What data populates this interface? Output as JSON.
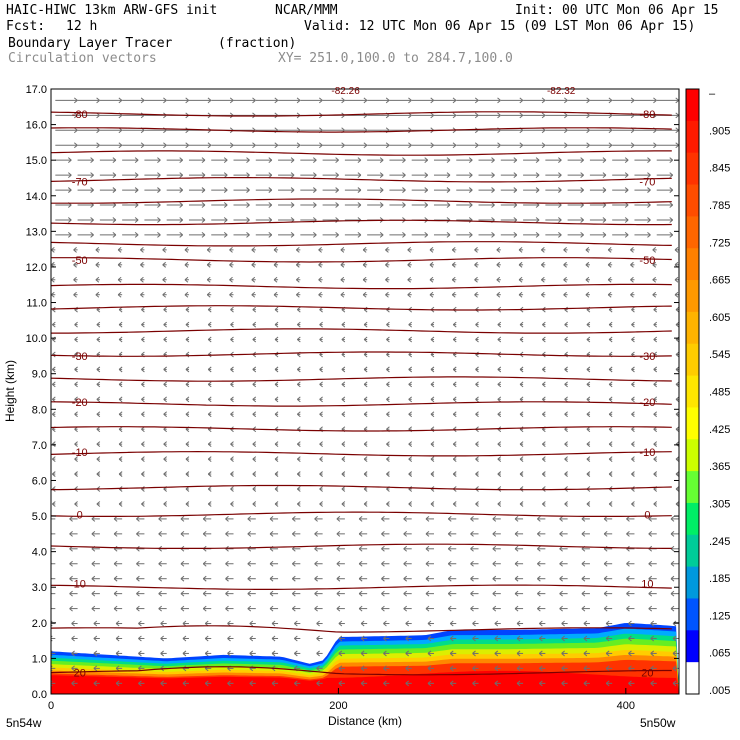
{
  "header": {
    "model": "HAIC-HIWC 13km ARW-GFS init",
    "org": "NCAR/MMM",
    "init": "Init: 00 UTC Mon 06 Apr 15",
    "fcst_label": "Fcst:",
    "fcst_value": "12 h",
    "valid": "Valid: 12 UTC Mon 06 Apr 15 (09 LST Mon 06 Apr 15)",
    "field": "Boundary Layer Tracer",
    "field_units": "(fraction)",
    "vectors": "Circulation vectors",
    "xy": "XY= 251.0,100.0 to 284.7,100.0"
  },
  "chart_data": {
    "type": "heatmap",
    "xlabel": "Distance (km)",
    "ylabel": "Height (km)",
    "xlim": [
      0,
      437
    ],
    "ylim": [
      0,
      17
    ],
    "xticks": [
      0,
      200,
      400
    ],
    "yticks": [
      "0.0",
      "1.0",
      "2.0",
      "3.0",
      "4.0",
      "5.0",
      "6.0",
      "7.0",
      "8.0",
      "9.0",
      "10.0",
      "11.0",
      "12.0",
      "13.0",
      "14.0",
      "15.0",
      "16.0",
      "17.0"
    ],
    "x_endpoint_labels": [
      "5n54w",
      "5n50w"
    ],
    "grid": false,
    "tracer_top_profile": {
      "x": [
        0,
        40,
        80,
        120,
        160,
        180,
        190,
        200,
        260,
        280,
        320,
        380,
        400,
        420,
        437
      ],
      "h": [
        1.2,
        1.1,
        1.0,
        1.1,
        1.05,
        0.85,
        0.95,
        1.6,
        1.65,
        1.8,
        1.8,
        1.85,
        2.0,
        1.95,
        1.9
      ]
    },
    "isotherm_labels": [
      {
        "value": "-80",
        "h": 16.3
      },
      {
        "value": "-70",
        "h": 14.4
      },
      {
        "value": "-50",
        "h": 12.2
      },
      {
        "value": "-30",
        "h": 9.5
      },
      {
        "value": "-20",
        "h": 8.2
      },
      {
        "value": "-10",
        "h": 6.8
      },
      {
        "value": "0",
        "h": 5.05
      },
      {
        "value": "10",
        "h": 3.1
      },
      {
        "value": "20",
        "h": 0.6
      }
    ],
    "top_labels": [
      "-82.26",
      "-82.32"
    ],
    "colorbar": {
      "labels": [
        "–",
        ".905",
        ".845",
        ".785",
        ".725",
        ".665",
        ".605",
        ".545",
        ".485",
        ".425",
        ".365",
        ".305",
        ".245",
        ".185",
        ".125",
        ".065",
        ".005"
      ],
      "colors": [
        "#ff0000",
        "#ff1a00",
        "#ff3300",
        "#ff4d00",
        "#ff6600",
        "#ff8000",
        "#ff9900",
        "#ffb300",
        "#ffcc00",
        "#ffe600",
        "#ffff00",
        "#ccff00",
        "#66ff33",
        "#00ee66",
        "#00cc99",
        "#0099dd",
        "#0055ff",
        "#0000ff",
        "#ffffff"
      ]
    }
  }
}
